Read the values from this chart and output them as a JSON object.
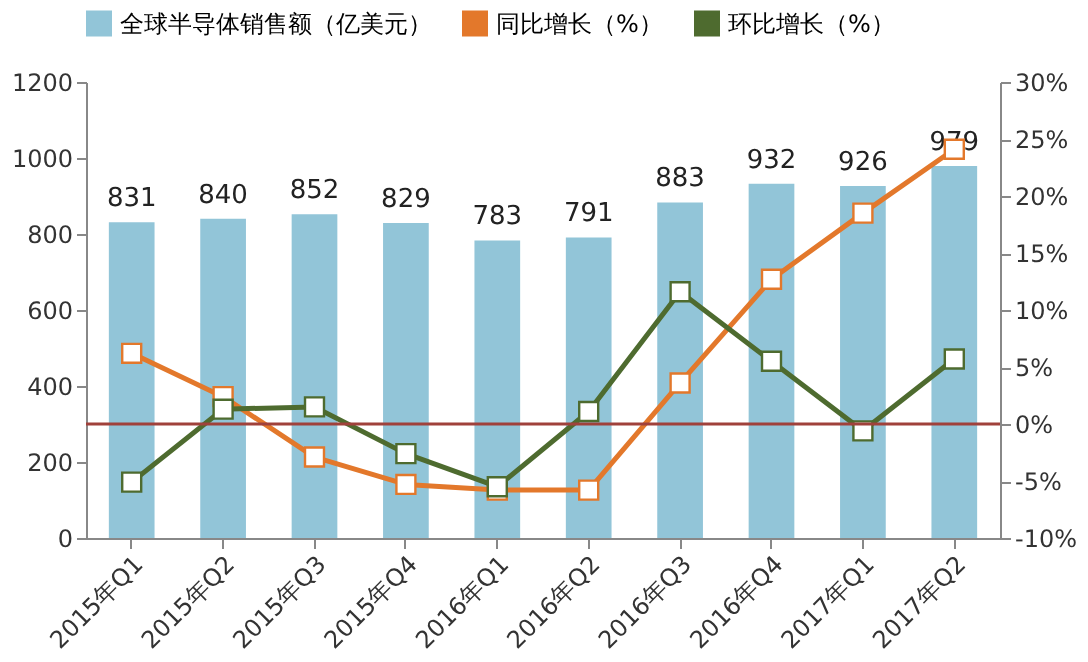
{
  "chart_data": {
    "type": "bar",
    "categories": [
      "2015年Q1",
      "2015年Q2",
      "2015年Q3",
      "2015年Q4",
      "2016年Q1",
      "2016年Q2",
      "2016年Q3",
      "2016年Q4",
      "2017年Q1",
      "2017年Q2"
    ],
    "series": [
      {
        "name": "全球半导体销售额（亿美元）",
        "color": "#92c5d8",
        "values": [
          831,
          840,
          852,
          829,
          783,
          791,
          883,
          932,
          926,
          979
        ],
        "value_labels": [
          "831",
          "840",
          "852",
          "829",
          "783",
          "791",
          "883",
          "932",
          "926",
          "979"
        ]
      },
      {
        "name": "同比增长（%）",
        "type": "line",
        "axis": "y2",
        "color": "#e3782b",
        "values": [
          6.2,
          2.4,
          -2.9,
          -5.3,
          -5.8,
          -5.8,
          3.6,
          12.7,
          18.5,
          24.1
        ]
      },
      {
        "name": "环比增长（%）",
        "type": "line",
        "axis": "y2",
        "color": "#4e6b2f",
        "values": [
          -5.1,
          1.3,
          1.5,
          -2.6,
          -5.5,
          1.1,
          11.6,
          5.5,
          -0.6,
          5.7
        ]
      }
    ],
    "marker": "square",
    "ylim": [
      0,
      1200
    ],
    "yticks": [
      0,
      200,
      400,
      600,
      800,
      1000,
      1200
    ],
    "y2lim": [
      -10,
      30
    ],
    "y2ticks": [
      {
        "value": -10,
        "label": "-10%"
      },
      {
        "value": -5,
        "label": "-5%"
      },
      {
        "value": 0,
        "label": "0%"
      },
      {
        "value": 5,
        "label": "5%"
      },
      {
        "value": 10,
        "label": "10%"
      },
      {
        "value": 15,
        "label": "15%"
      },
      {
        "value": 20,
        "label": "20%"
      },
      {
        "value": 25,
        "label": "25%"
      },
      {
        "value": 30,
        "label": "30%"
      }
    ],
    "ref_lines": [
      {
        "axis": "y2",
        "value": 0,
        "label": null,
        "color": "#a0413b"
      }
    ],
    "legend": "top",
    "grid": false
  }
}
